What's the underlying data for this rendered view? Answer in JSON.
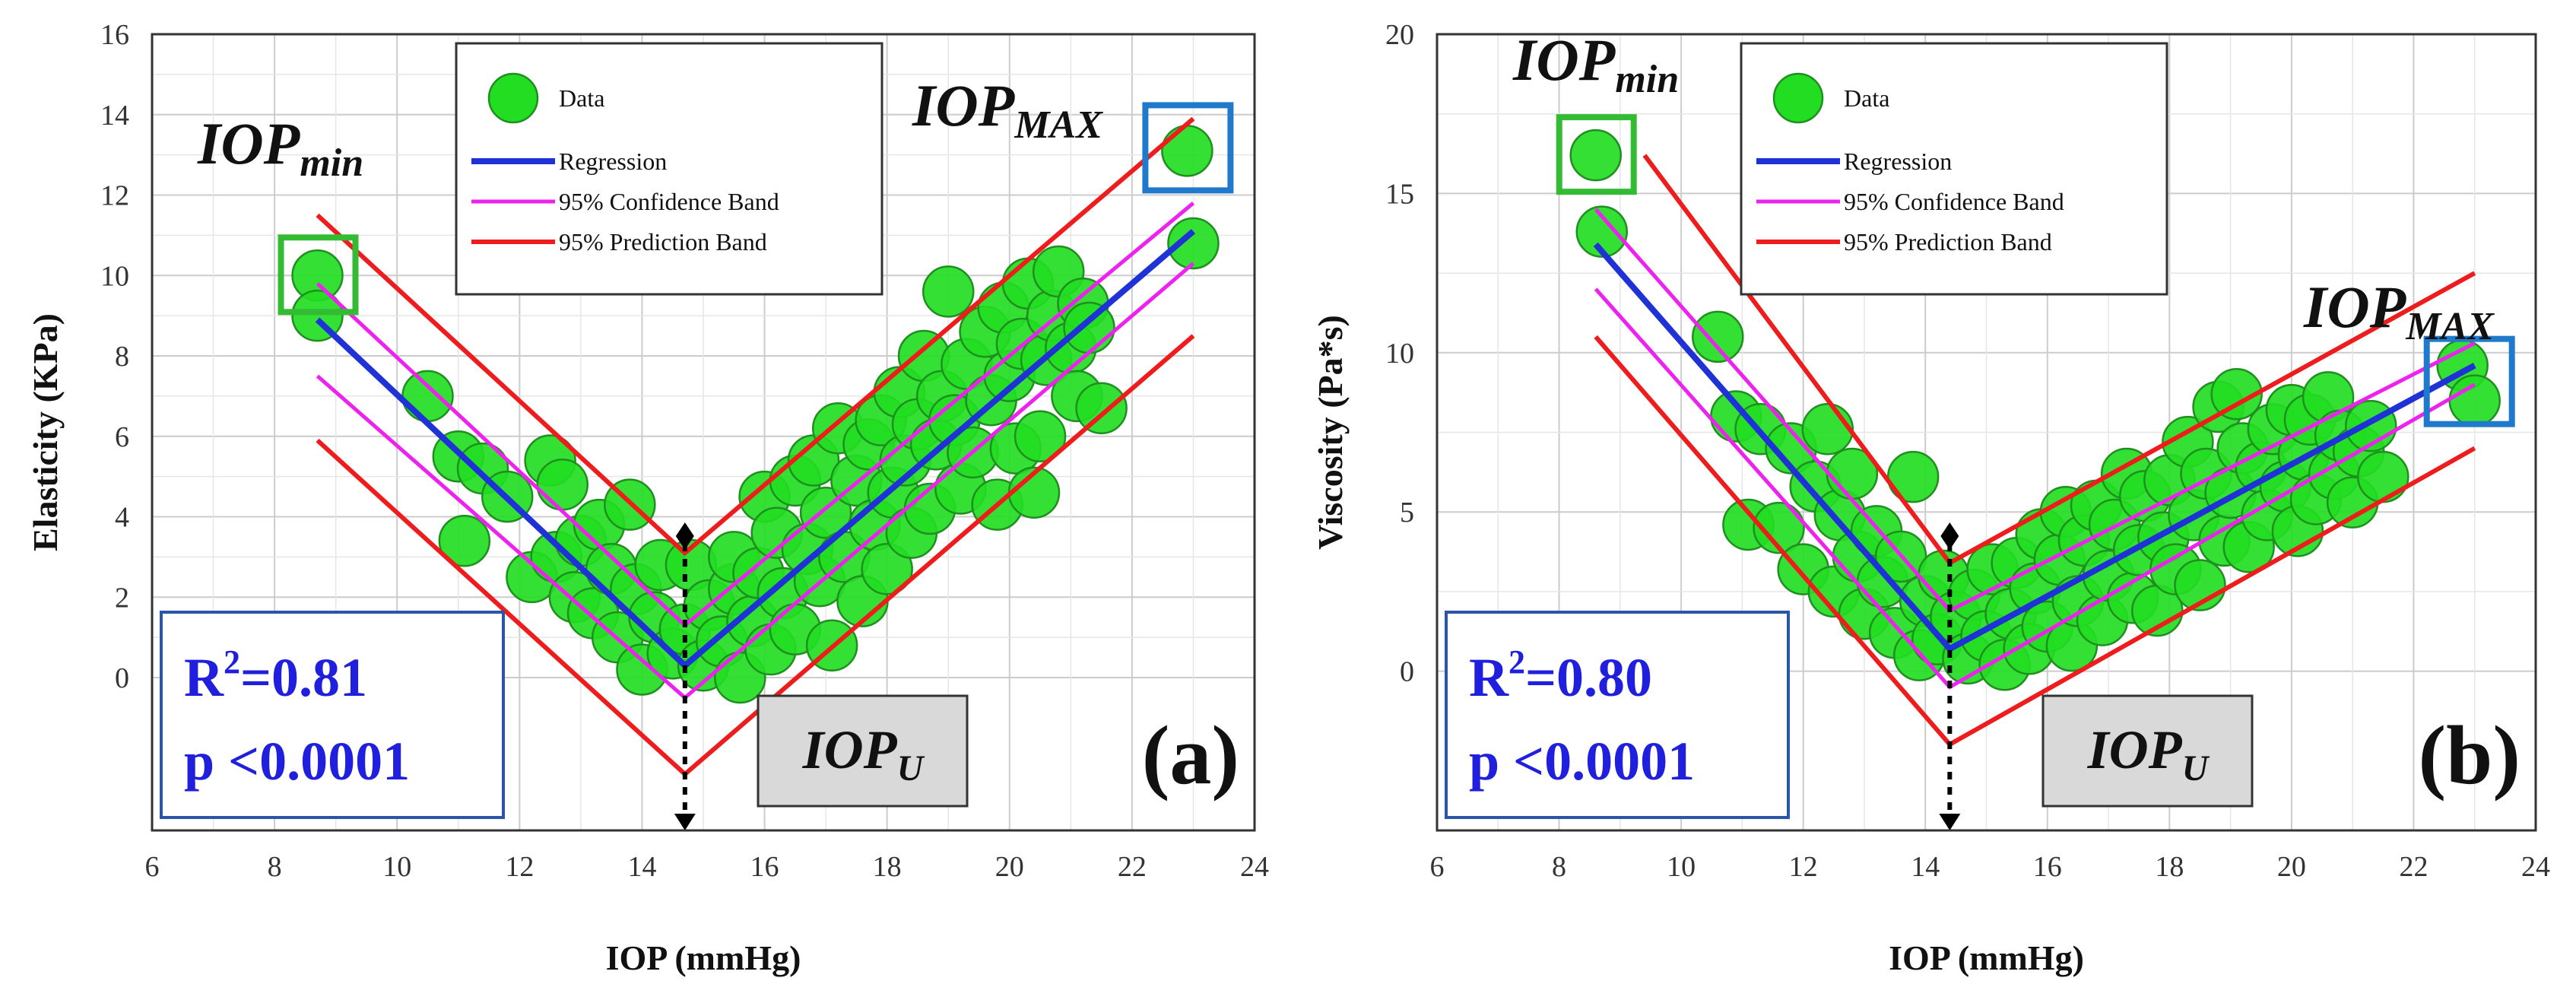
{
  "colors": {
    "data_fill": "#22dd22",
    "data_stroke": "#1f8f1f",
    "regression": "#1f32d6",
    "confidence": "#ee22ee",
    "prediction": "#ee1c1c",
    "min_box": "#33bb33",
    "max_box": "#1f7acc",
    "stats_text": "#1f1fdd",
    "stats_border": "#2b55aa",
    "iopu_fill": "#d9d9d9",
    "grid": "#cccccc"
  },
  "chart_data": [
    {
      "type": "scatter",
      "panel_label": "(a)",
      "xlabel": "IOP (mmHg)",
      "ylabel": "Elasticity (KPa)",
      "xlim": [
        6,
        24
      ],
      "ylim": [
        -3.8,
        16
      ],
      "xticks": [
        6,
        8,
        10,
        12,
        14,
        16,
        18,
        20,
        22,
        24
      ],
      "yticks": [
        0,
        2,
        4,
        6,
        8,
        10,
        12,
        14,
        16
      ],
      "grid": true,
      "legend_position": "top-center",
      "legend": [
        "Data",
        "Regression",
        "95% Confidence Band",
        "95% Prediction Band"
      ],
      "stats": {
        "r2_base": "R",
        "r2_sup": "2",
        "r2_rest": "=0.81",
        "p": "p <0.0001"
      },
      "annotations": {
        "iop_min": {
          "base": "IOP",
          "sub": "min"
        },
        "iop_max": {
          "base": "IOP",
          "sub": "MAX"
        },
        "iop_u": {
          "base": "IOP",
          "sub": "U"
        }
      },
      "vertex_x": 14.7,
      "highlight_min": {
        "x": 8.7,
        "y": 10.0
      },
      "highlight_max": {
        "x": 22.9,
        "y": 13.1
      },
      "series": [
        {
          "name": "Regression",
          "x": [
            8.7,
            14.7,
            23.0
          ],
          "y": [
            8.9,
            0.3,
            11.1
          ]
        },
        {
          "name": "95% Confidence Band (upper)",
          "x": [
            8.7,
            14.7,
            23.0
          ],
          "y": [
            9.8,
            1.3,
            11.8
          ]
        },
        {
          "name": "95% Confidence Band (lower)",
          "x": [
            8.7,
            14.7,
            23.0
          ],
          "y": [
            7.5,
            -0.5,
            10.3
          ]
        },
        {
          "name": "95% Prediction Band (upper)",
          "x": [
            8.7,
            14.7,
            23.0
          ],
          "y": [
            11.5,
            3.1,
            13.9
          ]
        },
        {
          "name": "95% Prediction Band (lower)",
          "x": [
            8.7,
            14.7,
            23.0
          ],
          "y": [
            5.9,
            -2.4,
            8.5
          ]
        },
        {
          "name": "Data",
          "points": [
            [
              8.7,
              10.0
            ],
            [
              8.7,
              9.0
            ],
            [
              10.5,
              7.0
            ],
            [
              11.0,
              5.5
            ],
            [
              11.1,
              3.4
            ],
            [
              11.4,
              5.2
            ],
            [
              11.8,
              4.5
            ],
            [
              12.2,
              2.5
            ],
            [
              12.5,
              5.4
            ],
            [
              12.6,
              3.0
            ],
            [
              12.7,
              4.8
            ],
            [
              12.9,
              2.0
            ],
            [
              13.0,
              3.4
            ],
            [
              13.2,
              1.6
            ],
            [
              13.3,
              3.8
            ],
            [
              13.5,
              2.7
            ],
            [
              13.6,
              1.0
            ],
            [
              13.8,
              4.3
            ],
            [
              13.9,
              2.2
            ],
            [
              14.0,
              0.2
            ],
            [
              14.2,
              1.5
            ],
            [
              14.3,
              2.8
            ],
            [
              14.5,
              0.6
            ],
            [
              14.7,
              1.2
            ],
            [
              14.8,
              2.8
            ],
            [
              15.0,
              0.3
            ],
            [
              15.1,
              1.8
            ],
            [
              15.3,
              0.9
            ],
            [
              15.5,
              2.2
            ],
            [
              15.5,
              3.0
            ],
            [
              15.6,
              0.0
            ],
            [
              15.8,
              1.4
            ],
            [
              15.9,
              2.6
            ],
            [
              16.0,
              4.5
            ],
            [
              16.1,
              0.7
            ],
            [
              16.2,
              3.6
            ],
            [
              16.3,
              2.1
            ],
            [
              16.5,
              4.9
            ],
            [
              16.5,
              1.2
            ],
            [
              16.7,
              3.2
            ],
            [
              16.8,
              5.4
            ],
            [
              16.9,
              2.4
            ],
            [
              17.0,
              4.1
            ],
            [
              17.1,
              0.8
            ],
            [
              17.2,
              6.2
            ],
            [
              17.3,
              3.0
            ],
            [
              17.5,
              4.9
            ],
            [
              17.6,
              1.9
            ],
            [
              17.7,
              5.8
            ],
            [
              17.8,
              3.8
            ],
            [
              17.9,
              6.4
            ],
            [
              18.0,
              2.7
            ],
            [
              18.1,
              4.6
            ],
            [
              18.2,
              7.1
            ],
            [
              18.3,
              5.4
            ],
            [
              18.4,
              3.6
            ],
            [
              18.5,
              6.3
            ],
            [
              18.6,
              8.0
            ],
            [
              18.7,
              4.2
            ],
            [
              18.8,
              5.8
            ],
            [
              18.9,
              7.0
            ],
            [
              19.0,
              9.6
            ],
            [
              19.1,
              6.4
            ],
            [
              19.2,
              4.7
            ],
            [
              19.3,
              7.8
            ],
            [
              19.4,
              5.6
            ],
            [
              19.6,
              8.6
            ],
            [
              19.7,
              6.9
            ],
            [
              19.8,
              4.3
            ],
            [
              19.9,
              9.2
            ],
            [
              20.0,
              7.5
            ],
            [
              20.1,
              5.7
            ],
            [
              20.2,
              8.3
            ],
            [
              20.3,
              9.8
            ],
            [
              20.4,
              4.6
            ],
            [
              20.5,
              6.0
            ],
            [
              20.6,
              7.9
            ],
            [
              20.7,
              9.0
            ],
            [
              20.8,
              10.1
            ],
            [
              21.0,
              8.2
            ],
            [
              21.1,
              7.0
            ],
            [
              21.2,
              9.3
            ],
            [
              21.3,
              8.7
            ],
            [
              21.5,
              6.7
            ],
            [
              22.9,
              13.1
            ],
            [
              23.0,
              10.8
            ]
          ]
        }
      ]
    },
    {
      "type": "scatter",
      "panel_label": "(b)",
      "xlabel": "IOP (mmHg)",
      "ylabel": "Viscosity (Pa*s)",
      "xlim": [
        6,
        24
      ],
      "ylim": [
        -5,
        20
      ],
      "xticks": [
        6,
        8,
        10,
        12,
        14,
        16,
        18,
        20,
        22,
        24
      ],
      "yticks": [
        0,
        5,
        10,
        15,
        20
      ],
      "grid": true,
      "legend_position": "top-center",
      "legend": [
        "Data",
        "Regression",
        "95% Confidence Band",
        "95% Prediction Band"
      ],
      "stats": {
        "r2_base": "R",
        "r2_sup": "2",
        "r2_rest": "=0.80",
        "p": "p <0.0001"
      },
      "annotations": {
        "iop_min": {
          "base": "IOP",
          "sub": "min"
        },
        "iop_max": {
          "base": "IOP",
          "sub": "MAX"
        },
        "iop_u": {
          "base": "IOP",
          "sub": "U"
        }
      },
      "vertex_x": 14.4,
      "highlight_min": {
        "x": 8.6,
        "y": 16.2
      },
      "highlight_max": {
        "x": 22.9,
        "y": 9.0
      },
      "series": [
        {
          "name": "Regression",
          "x": [
            8.6,
            14.4,
            23.0
          ],
          "y": [
            13.4,
            0.7,
            9.6
          ]
        },
        {
          "name": "95% Confidence Band (upper)",
          "x": [
            8.6,
            14.4,
            23.0
          ],
          "y": [
            14.5,
            1.9,
            10.3
          ]
        },
        {
          "name": "95% Confidence Band (lower)",
          "x": [
            8.6,
            14.4,
            23.0
          ],
          "y": [
            12.0,
            -0.5,
            9.0
          ]
        },
        {
          "name": "95% Prediction Band (upper)",
          "x": [
            9.4,
            14.4,
            23.0
          ],
          "y": [
            16.2,
            3.4,
            12.5
          ]
        },
        {
          "name": "95% Prediction Band (lower)",
          "x": [
            8.6,
            14.4,
            23.0
          ],
          "y": [
            10.5,
            -2.3,
            7.0
          ]
        },
        {
          "name": "Data",
          "points": [
            [
              8.6,
              16.2
            ],
            [
              8.7,
              13.8
            ],
            [
              10.6,
              10.5
            ],
            [
              10.9,
              8.0
            ],
            [
              11.1,
              4.6
            ],
            [
              11.3,
              7.6
            ],
            [
              11.6,
              4.5
            ],
            [
              11.8,
              7.0
            ],
            [
              12.0,
              3.2
            ],
            [
              12.2,
              5.8
            ],
            [
              12.4,
              7.6
            ],
            [
              12.5,
              2.5
            ],
            [
              12.6,
              4.9
            ],
            [
              12.8,
              6.2
            ],
            [
              12.9,
              3.6
            ],
            [
              13.0,
              1.8
            ],
            [
              13.2,
              4.4
            ],
            [
              13.3,
              2.8
            ],
            [
              13.5,
              1.2
            ],
            [
              13.6,
              3.6
            ],
            [
              13.8,
              6.1
            ],
            [
              13.9,
              0.5
            ],
            [
              14.0,
              2.2
            ],
            [
              14.2,
              1.0
            ],
            [
              14.3,
              3.0
            ],
            [
              14.5,
              1.7
            ],
            [
              14.7,
              0.4
            ],
            [
              14.8,
              2.4
            ],
            [
              15.0,
              1.1
            ],
            [
              15.1,
              3.2
            ],
            [
              15.3,
              0.2
            ],
            [
              15.4,
              1.8
            ],
            [
              15.5,
              3.4
            ],
            [
              15.7,
              0.7
            ],
            [
              15.8,
              2.6
            ],
            [
              15.9,
              4.3
            ],
            [
              16.0,
              1.4
            ],
            [
              16.2,
              3.5
            ],
            [
              16.3,
              5.0
            ],
            [
              16.4,
              0.8
            ],
            [
              16.5,
              2.2
            ],
            [
              16.6,
              4.1
            ],
            [
              16.8,
              5.2
            ],
            [
              16.9,
              1.6
            ],
            [
              17.0,
              3.0
            ],
            [
              17.1,
              4.6
            ],
            [
              17.3,
              6.2
            ],
            [
              17.4,
              2.3
            ],
            [
              17.5,
              3.8
            ],
            [
              17.6,
              5.5
            ],
            [
              17.8,
              1.9
            ],
            [
              17.9,
              4.2
            ],
            [
              18.0,
              6.0
            ],
            [
              18.1,
              3.2
            ],
            [
              18.3,
              7.2
            ],
            [
              18.4,
              4.9
            ],
            [
              18.5,
              2.7
            ],
            [
              18.6,
              6.2
            ],
            [
              18.8,
              8.3
            ],
            [
              18.9,
              4.1
            ],
            [
              19.0,
              5.6
            ],
            [
              19.1,
              8.7
            ],
            [
              19.2,
              7.0
            ],
            [
              19.3,
              3.9
            ],
            [
              19.5,
              6.4
            ],
            [
              19.6,
              4.9
            ],
            [
              19.7,
              7.6
            ],
            [
              19.9,
              5.8
            ],
            [
              20.0,
              8.2
            ],
            [
              20.1,
              4.4
            ],
            [
              20.2,
              6.8
            ],
            [
              20.3,
              7.9
            ],
            [
              20.4,
              5.4
            ],
            [
              20.6,
              8.6
            ],
            [
              20.7,
              6.2
            ],
            [
              20.8,
              7.4
            ],
            [
              21.0,
              5.3
            ],
            [
              21.1,
              6.9
            ],
            [
              21.3,
              7.7
            ],
            [
              21.5,
              6.1
            ],
            [
              22.8,
              9.6
            ],
            [
              23.0,
              8.5
            ]
          ]
        }
      ]
    }
  ]
}
